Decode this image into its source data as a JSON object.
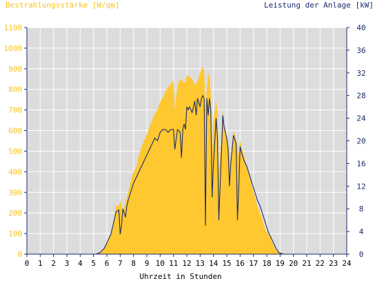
{
  "colors": {
    "irradiance_fill": "#ffc830",
    "power_line": "#1a2a6c",
    "left_axis_text": "#f5c518",
    "right_axis_text": "#1a2a6c",
    "plot_background": "#dcdcdc",
    "grid": "#ffffff"
  },
  "chart_data": {
    "type": "area",
    "left_axis_title": "Bestrahlungsstärke [W/qm]",
    "right_axis_title": "Leistung der Anlage [kW]",
    "xlabel": "Uhrzeit in Stunden",
    "xlim": [
      0,
      24
    ],
    "x_ticks": [
      "0",
      "1",
      "2",
      "3",
      "4",
      "5",
      "6",
      "7",
      "8",
      "9",
      "10",
      "11",
      "12",
      "13",
      "14",
      "15",
      "16",
      "17",
      "18",
      "19",
      "20",
      "21",
      "22",
      "23",
      "24"
    ],
    "ylim_left": [
      0,
      1100
    ],
    "y_ticks_left": [
      "0",
      "100",
      "200",
      "300",
      "400",
      "500",
      "600",
      "700",
      "800",
      "900",
      "1000",
      "1100"
    ],
    "ylim_right": [
      0,
      40
    ],
    "y_ticks_right": [
      "0",
      "4",
      "8",
      "12",
      "16",
      "20",
      "24",
      "28",
      "32",
      "36",
      "40"
    ],
    "grid": true,
    "series": [
      {
        "axis": "left",
        "style": "area",
        "x": [
          0,
          5.2,
          5.5,
          5.8,
          6.0,
          6.3,
          6.5,
          6.7,
          6.9,
          7.0,
          7.2,
          7.4,
          7.6,
          7.8,
          8.0,
          8.2,
          8.4,
          8.6,
          8.8,
          9.0,
          9.2,
          9.4,
          9.6,
          9.8,
          10.0,
          10.2,
          10.4,
          10.6,
          10.8,
          11.0,
          11.1,
          11.3,
          11.5,
          11.7,
          11.9,
          12.0,
          12.2,
          12.4,
          12.6,
          12.8,
          13.0,
          13.1,
          13.2,
          13.3,
          13.4,
          13.5,
          13.6,
          13.7,
          13.8,
          13.9,
          14.0,
          14.2,
          14.3,
          14.4,
          14.6,
          14.7,
          14.8,
          15.0,
          15.2,
          15.3,
          15.5,
          15.7,
          15.9,
          16.0,
          16.1,
          16.3,
          16.5,
          16.7,
          16.9,
          17.1,
          17.3,
          17.5,
          17.7,
          17.9,
          18.1,
          18.3,
          18.5,
          18.7,
          18.9,
          19.1,
          19.3,
          19.6,
          20.0,
          24
        ],
        "values": [
          0,
          0,
          10,
          30,
          60,
          100,
          160,
          240,
          230,
          260,
          210,
          250,
          300,
          360,
          400,
          420,
          480,
          520,
          550,
          580,
          620,
          650,
          680,
          700,
          740,
          760,
          790,
          810,
          830,
          840,
          700,
          820,
          850,
          840,
          830,
          870,
          860,
          850,
          820,
          840,
          880,
          900,
          910,
          890,
          700,
          800,
          880,
          860,
          780,
          500,
          650,
          740,
          700,
          400,
          560,
          700,
          620,
          560,
          500,
          400,
          600,
          560,
          480,
          550,
          520,
          480,
          420,
          380,
          330,
          280,
          230,
          200,
          160,
          120,
          100,
          80,
          40,
          20,
          10,
          5,
          0,
          0,
          0,
          0
        ]
      },
      {
        "axis": "right",
        "style": "line",
        "x": [
          0,
          5.2,
          5.5,
          5.8,
          6.0,
          6.3,
          6.5,
          6.7,
          6.9,
          7.0,
          7.1,
          7.2,
          7.4,
          7.5,
          7.6,
          7.8,
          8.0,
          8.2,
          8.4,
          8.6,
          8.8,
          9.0,
          9.2,
          9.4,
          9.6,
          9.8,
          10.0,
          10.2,
          10.4,
          10.6,
          10.8,
          11.0,
          11.1,
          11.3,
          11.5,
          11.6,
          11.7,
          11.8,
          11.9,
          12.0,
          12.1,
          12.2,
          12.4,
          12.6,
          12.7,
          12.8,
          13.0,
          13.1,
          13.2,
          13.3,
          13.4,
          13.5,
          13.6,
          13.7,
          13.8,
          13.9,
          14.0,
          14.2,
          14.3,
          14.4,
          14.6,
          14.7,
          14.8,
          15.0,
          15.1,
          15.2,
          15.3,
          15.5,
          15.7,
          15.8,
          15.9,
          16.0,
          16.1,
          16.3,
          16.5,
          16.7,
          16.9,
          17.1,
          17.3,
          17.5,
          17.7,
          17.9,
          18.1,
          18.3,
          18.5,
          18.7,
          18.9,
          19.1,
          19.3,
          19.6,
          20.0,
          24
        ],
        "values": [
          0,
          0,
          0.3,
          1,
          2,
          3.5,
          5.5,
          7.5,
          7.8,
          3.5,
          5,
          8,
          6.5,
          8.5,
          9.5,
          11,
          12.5,
          13.5,
          14.5,
          15.5,
          16.5,
          17.5,
          18.5,
          19.5,
          20.5,
          20,
          21.5,
          22,
          22,
          21.5,
          22,
          22,
          18.5,
          22,
          21.5,
          17,
          22,
          23,
          22,
          26,
          25.5,
          26,
          25,
          27,
          24.5,
          27.5,
          26,
          27.5,
          28,
          27.5,
          5,
          27.5,
          24.5,
          27.5,
          25.5,
          10,
          16,
          24,
          20.5,
          6,
          18,
          24.5,
          22.5,
          20.5,
          18.5,
          12,
          16,
          21,
          19.5,
          6,
          12,
          19,
          18,
          16.5,
          15.5,
          14,
          12.5,
          11,
          9.5,
          8.5,
          7,
          5.5,
          4,
          3,
          2,
          1,
          0.3,
          0.1,
          0,
          0,
          0,
          0
        ]
      }
    ]
  }
}
